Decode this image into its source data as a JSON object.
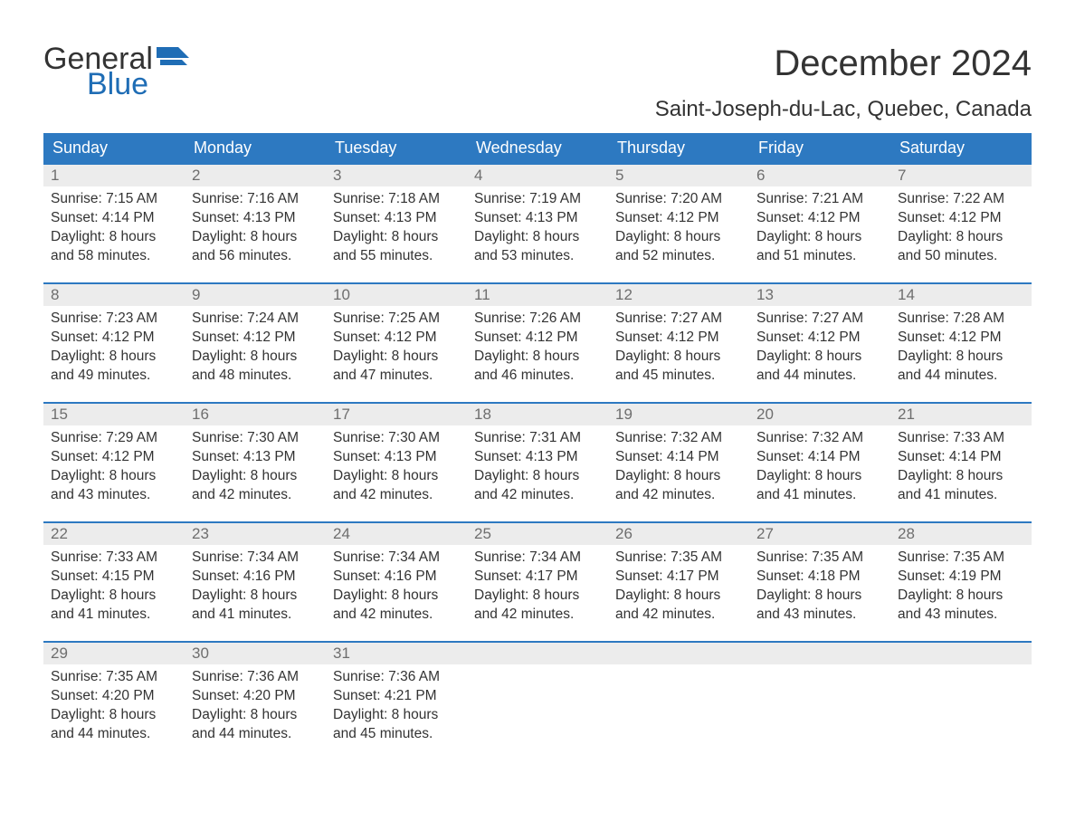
{
  "logo": {
    "word1": "General",
    "word2": "Blue"
  },
  "header": {
    "month_title": "December 2024",
    "location": "Saint-Joseph-du-Lac, Quebec, Canada"
  },
  "colors": {
    "header_bg": "#2d79c1",
    "header_fg": "#ffffff",
    "daybar_bg": "#ececec",
    "daynum_color": "#6e6e6e",
    "text": "#333333",
    "logo_blue": "#1f6db5",
    "row_divider": "#2d79c1",
    "page_bg": "#ffffff"
  },
  "typography": {
    "month_title_fontsize": 40,
    "location_fontsize": 24,
    "weekday_fontsize": 18,
    "daynum_fontsize": 17,
    "body_fontsize": 15.5
  },
  "calendar": {
    "columns": [
      "Sunday",
      "Monday",
      "Tuesday",
      "Wednesday",
      "Thursday",
      "Friday",
      "Saturday"
    ],
    "weeks": [
      [
        {
          "n": "1",
          "sr": "Sunrise: 7:15 AM",
          "ss": "Sunset: 4:14 PM",
          "d1": "Daylight: 8 hours",
          "d2": "and 58 minutes."
        },
        {
          "n": "2",
          "sr": "Sunrise: 7:16 AM",
          "ss": "Sunset: 4:13 PM",
          "d1": "Daylight: 8 hours",
          "d2": "and 56 minutes."
        },
        {
          "n": "3",
          "sr": "Sunrise: 7:18 AM",
          "ss": "Sunset: 4:13 PM",
          "d1": "Daylight: 8 hours",
          "d2": "and 55 minutes."
        },
        {
          "n": "4",
          "sr": "Sunrise: 7:19 AM",
          "ss": "Sunset: 4:13 PM",
          "d1": "Daylight: 8 hours",
          "d2": "and 53 minutes."
        },
        {
          "n": "5",
          "sr": "Sunrise: 7:20 AM",
          "ss": "Sunset: 4:12 PM",
          "d1": "Daylight: 8 hours",
          "d2": "and 52 minutes."
        },
        {
          "n": "6",
          "sr": "Sunrise: 7:21 AM",
          "ss": "Sunset: 4:12 PM",
          "d1": "Daylight: 8 hours",
          "d2": "and 51 minutes."
        },
        {
          "n": "7",
          "sr": "Sunrise: 7:22 AM",
          "ss": "Sunset: 4:12 PM",
          "d1": "Daylight: 8 hours",
          "d2": "and 50 minutes."
        }
      ],
      [
        {
          "n": "8",
          "sr": "Sunrise: 7:23 AM",
          "ss": "Sunset: 4:12 PM",
          "d1": "Daylight: 8 hours",
          "d2": "and 49 minutes."
        },
        {
          "n": "9",
          "sr": "Sunrise: 7:24 AM",
          "ss": "Sunset: 4:12 PM",
          "d1": "Daylight: 8 hours",
          "d2": "and 48 minutes."
        },
        {
          "n": "10",
          "sr": "Sunrise: 7:25 AM",
          "ss": "Sunset: 4:12 PM",
          "d1": "Daylight: 8 hours",
          "d2": "and 47 minutes."
        },
        {
          "n": "11",
          "sr": "Sunrise: 7:26 AM",
          "ss": "Sunset: 4:12 PM",
          "d1": "Daylight: 8 hours",
          "d2": "and 46 minutes."
        },
        {
          "n": "12",
          "sr": "Sunrise: 7:27 AM",
          "ss": "Sunset: 4:12 PM",
          "d1": "Daylight: 8 hours",
          "d2": "and 45 minutes."
        },
        {
          "n": "13",
          "sr": "Sunrise: 7:27 AM",
          "ss": "Sunset: 4:12 PM",
          "d1": "Daylight: 8 hours",
          "d2": "and 44 minutes."
        },
        {
          "n": "14",
          "sr": "Sunrise: 7:28 AM",
          "ss": "Sunset: 4:12 PM",
          "d1": "Daylight: 8 hours",
          "d2": "and 44 minutes."
        }
      ],
      [
        {
          "n": "15",
          "sr": "Sunrise: 7:29 AM",
          "ss": "Sunset: 4:12 PM",
          "d1": "Daylight: 8 hours",
          "d2": "and 43 minutes."
        },
        {
          "n": "16",
          "sr": "Sunrise: 7:30 AM",
          "ss": "Sunset: 4:13 PM",
          "d1": "Daylight: 8 hours",
          "d2": "and 42 minutes."
        },
        {
          "n": "17",
          "sr": "Sunrise: 7:30 AM",
          "ss": "Sunset: 4:13 PM",
          "d1": "Daylight: 8 hours",
          "d2": "and 42 minutes."
        },
        {
          "n": "18",
          "sr": "Sunrise: 7:31 AM",
          "ss": "Sunset: 4:13 PM",
          "d1": "Daylight: 8 hours",
          "d2": "and 42 minutes."
        },
        {
          "n": "19",
          "sr": "Sunrise: 7:32 AM",
          "ss": "Sunset: 4:14 PM",
          "d1": "Daylight: 8 hours",
          "d2": "and 42 minutes."
        },
        {
          "n": "20",
          "sr": "Sunrise: 7:32 AM",
          "ss": "Sunset: 4:14 PM",
          "d1": "Daylight: 8 hours",
          "d2": "and 41 minutes."
        },
        {
          "n": "21",
          "sr": "Sunrise: 7:33 AM",
          "ss": "Sunset: 4:14 PM",
          "d1": "Daylight: 8 hours",
          "d2": "and 41 minutes."
        }
      ],
      [
        {
          "n": "22",
          "sr": "Sunrise: 7:33 AM",
          "ss": "Sunset: 4:15 PM",
          "d1": "Daylight: 8 hours",
          "d2": "and 41 minutes."
        },
        {
          "n": "23",
          "sr": "Sunrise: 7:34 AM",
          "ss": "Sunset: 4:16 PM",
          "d1": "Daylight: 8 hours",
          "d2": "and 41 minutes."
        },
        {
          "n": "24",
          "sr": "Sunrise: 7:34 AM",
          "ss": "Sunset: 4:16 PM",
          "d1": "Daylight: 8 hours",
          "d2": "and 42 minutes."
        },
        {
          "n": "25",
          "sr": "Sunrise: 7:34 AM",
          "ss": "Sunset: 4:17 PM",
          "d1": "Daylight: 8 hours",
          "d2": "and 42 minutes."
        },
        {
          "n": "26",
          "sr": "Sunrise: 7:35 AM",
          "ss": "Sunset: 4:17 PM",
          "d1": "Daylight: 8 hours",
          "d2": "and 42 minutes."
        },
        {
          "n": "27",
          "sr": "Sunrise: 7:35 AM",
          "ss": "Sunset: 4:18 PM",
          "d1": "Daylight: 8 hours",
          "d2": "and 43 minutes."
        },
        {
          "n": "28",
          "sr": "Sunrise: 7:35 AM",
          "ss": "Sunset: 4:19 PM",
          "d1": "Daylight: 8 hours",
          "d2": "and 43 minutes."
        }
      ],
      [
        {
          "n": "29",
          "sr": "Sunrise: 7:35 AM",
          "ss": "Sunset: 4:20 PM",
          "d1": "Daylight: 8 hours",
          "d2": "and 44 minutes."
        },
        {
          "n": "30",
          "sr": "Sunrise: 7:36 AM",
          "ss": "Sunset: 4:20 PM",
          "d1": "Daylight: 8 hours",
          "d2": "and 44 minutes."
        },
        {
          "n": "31",
          "sr": "Sunrise: 7:36 AM",
          "ss": "Sunset: 4:21 PM",
          "d1": "Daylight: 8 hours",
          "d2": "and 45 minutes."
        },
        null,
        null,
        null,
        null
      ]
    ]
  }
}
